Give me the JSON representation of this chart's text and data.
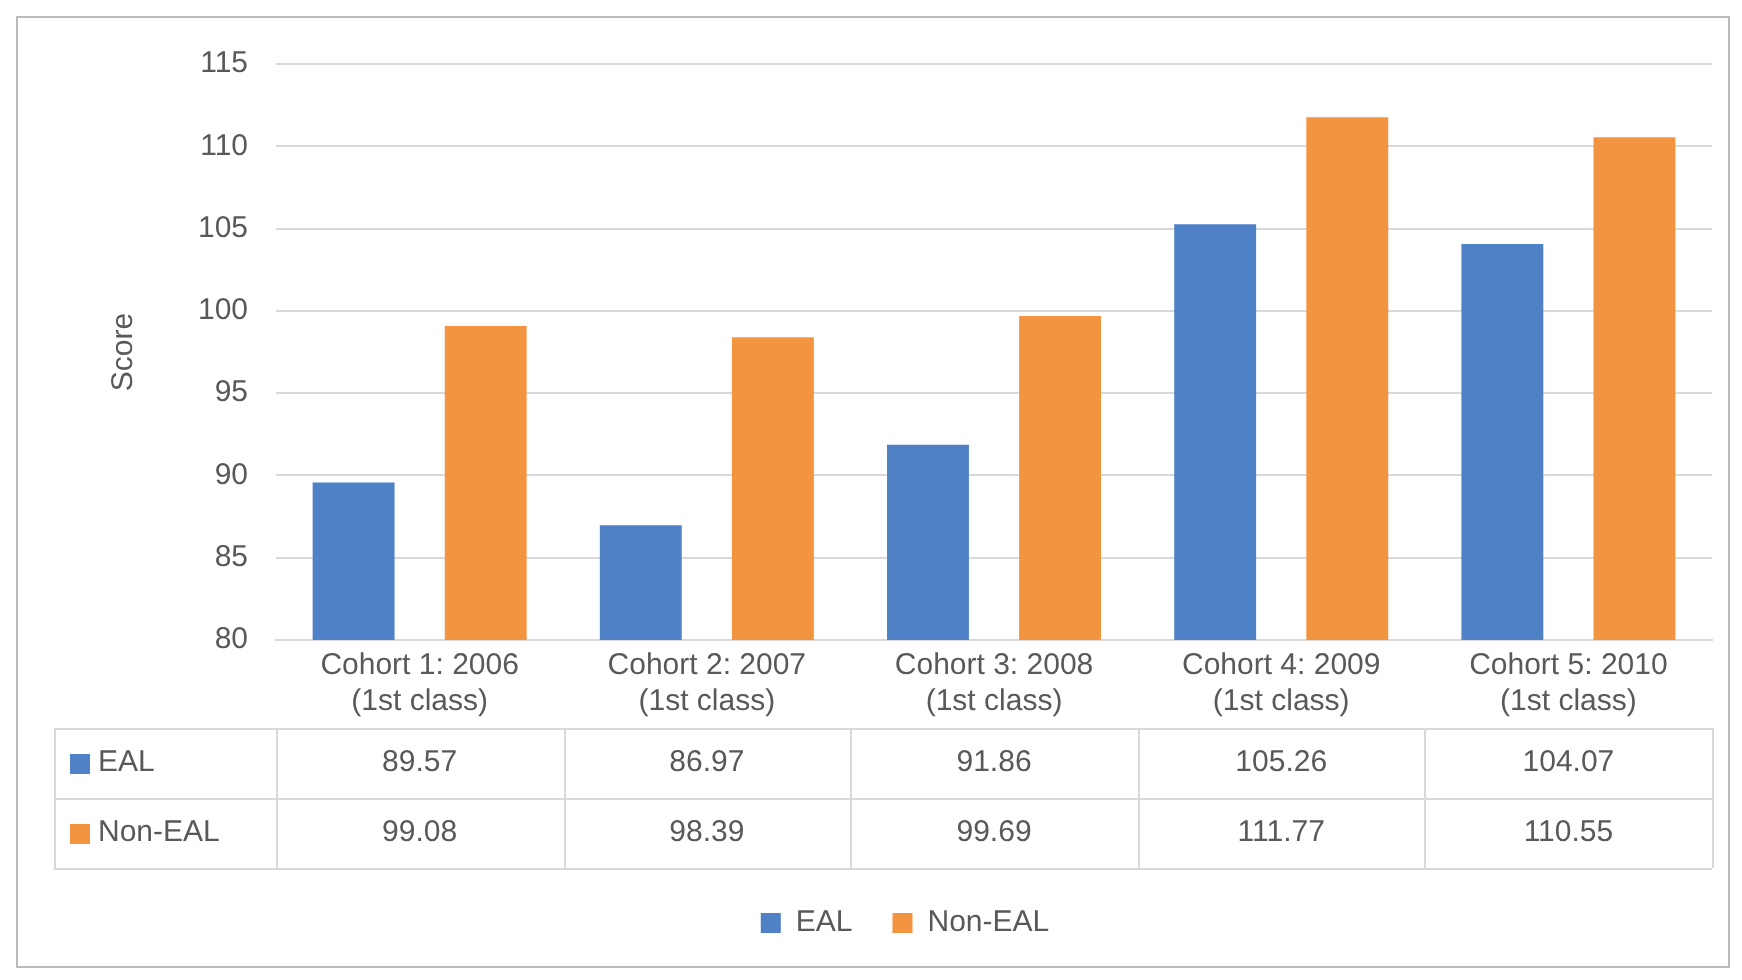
{
  "chart_data": {
    "type": "bar",
    "ylabel": "Score",
    "categories": [
      "Cohort 1: 2006 (1st class)",
      "Cohort 2: 2007 (1st class)",
      "Cohort 3: 2008 (1st class)",
      "Cohort 4: 2009 (1st class)",
      "Cohort 5: 2010 (1st class)"
    ],
    "series": [
      {
        "name": "EAL",
        "color": "#4f81c7",
        "values": [
          89.57,
          86.97,
          91.86,
          105.26,
          104.07
        ]
      },
      {
        "name": "Non-EAL",
        "color": "#f39440",
        "values": [
          99.08,
          98.39,
          99.69,
          111.77,
          110.55
        ]
      }
    ],
    "ylim": [
      80,
      115
    ],
    "yticks": [
      80,
      85,
      90,
      95,
      100,
      105,
      110,
      115
    ],
    "grid": "y",
    "legend": "bottom",
    "data_labels": true
  }
}
